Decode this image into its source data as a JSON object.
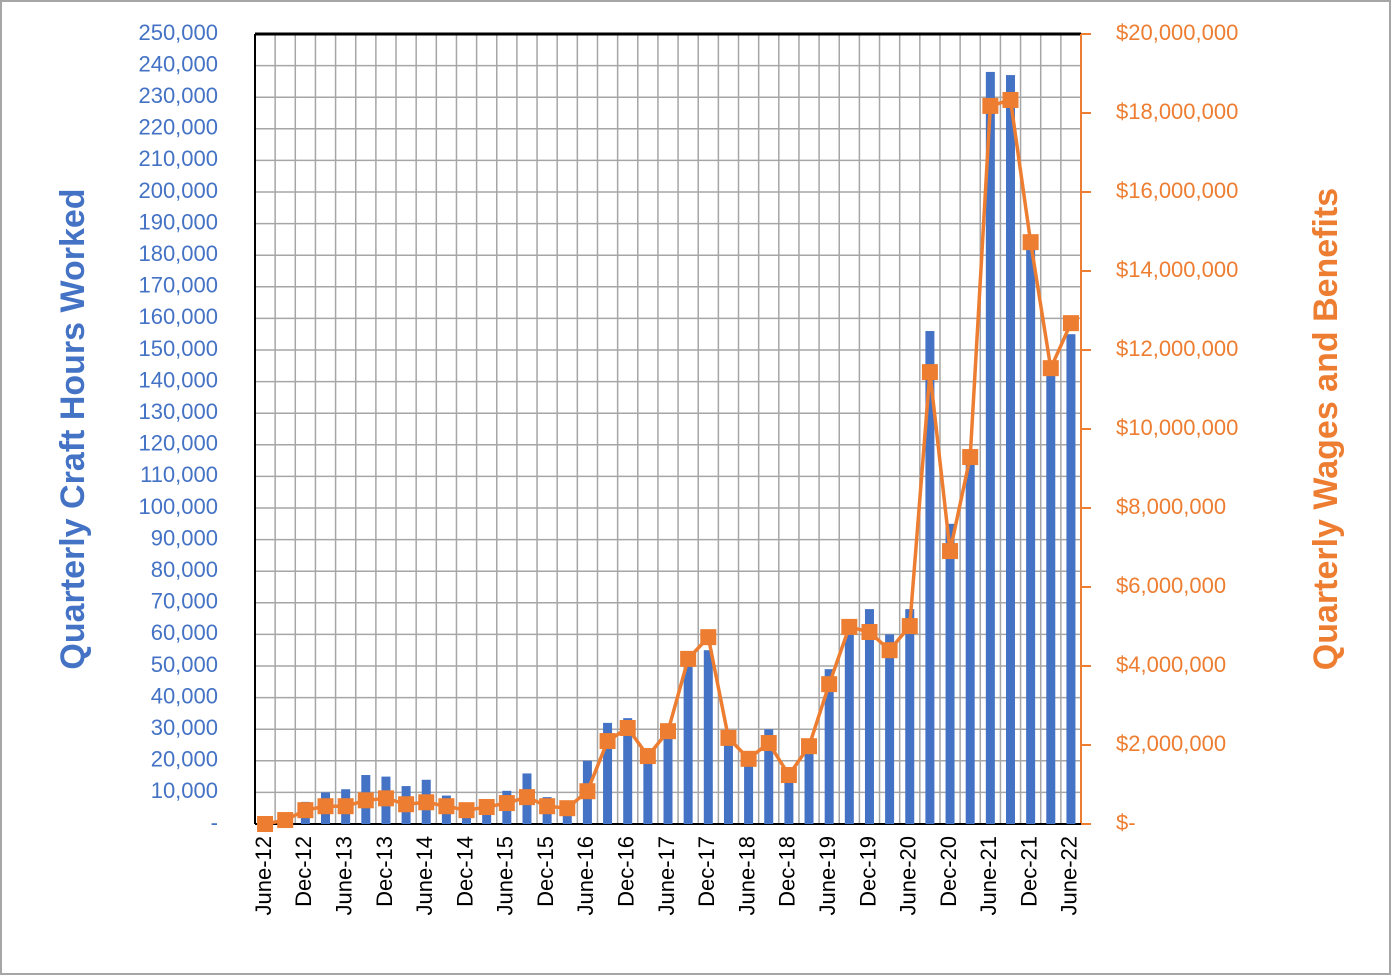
{
  "chart_data": {
    "type": "bar-line",
    "y_label": "Quarterly Craft Hours Worked",
    "y2_label": "Quarterly Wages and Benefits",
    "categories": [
      "June-12",
      null,
      "Dec-12",
      null,
      "June-13",
      null,
      "Dec-13",
      null,
      "June-14",
      null,
      "Dec-14",
      null,
      "June-15",
      null,
      "Dec-15",
      null,
      "June-16",
      null,
      "Dec-16",
      null,
      "June-17",
      null,
      "Dec-17",
      null,
      "June-18",
      null,
      "Dec-18",
      null,
      "June-19",
      null,
      "Dec-19",
      null,
      "June-20",
      null,
      "Dec-20",
      null,
      "June-21",
      null,
      "Dec-21",
      null,
      "June-22"
    ],
    "series": [
      {
        "type": "bar",
        "color": "#4472c4",
        "values": [
          1000,
          3000,
          7000,
          10000,
          11000,
          15500,
          15000,
          12000,
          14000,
          9000,
          5000,
          6000,
          10500,
          16000,
          8500,
          7000,
          20000,
          32000,
          33500,
          21000,
          30000,
          50000,
          55000,
          27000,
          20000,
          30000,
          14000,
          25000,
          49000,
          63000,
          68000,
          60000,
          68000,
          156000,
          95000,
          118000,
          238000,
          237000,
          185000,
          145000,
          155000
        ]
      },
      {
        "type": "line",
        "axis": "y2",
        "color": "#ed7d31",
        "values": [
          0,
          100000,
          350000,
          450000,
          450000,
          600000,
          650000,
          500000,
          550000,
          450000,
          350000,
          430000,
          530000,
          680000,
          450000,
          400000,
          830000,
          2100000,
          2430000,
          1720000,
          2350000,
          4180000,
          4730000,
          2180000,
          1650000,
          2050000,
          1240000,
          1970000,
          3540000,
          4990000,
          4860000,
          4400000,
          5010000,
          11440000,
          6910000,
          9290000,
          18180000,
          18330000,
          14730000,
          11540000,
          12680000
        ]
      }
    ],
    "ylim": [
      0,
      250000
    ],
    "yticks": [
      {
        "value": 0,
        "label": "-"
      },
      {
        "value": 10000,
        "label": "10,000"
      },
      {
        "value": 20000,
        "label": "20,000"
      },
      {
        "value": 30000,
        "label": "30,000"
      },
      {
        "value": 40000,
        "label": "40,000"
      },
      {
        "value": 50000,
        "label": "50,000"
      },
      {
        "value": 60000,
        "label": "60,000"
      },
      {
        "value": 70000,
        "label": "70,000"
      },
      {
        "value": 80000,
        "label": "80,000"
      },
      {
        "value": 90000,
        "label": "90,000"
      },
      {
        "value": 100000,
        "label": "100,000"
      },
      {
        "value": 110000,
        "label": "110,000"
      },
      {
        "value": 120000,
        "label": "120,000"
      },
      {
        "value": 130000,
        "label": "130,000"
      },
      {
        "value": 140000,
        "label": "140,000"
      },
      {
        "value": 150000,
        "label": "150,000"
      },
      {
        "value": 160000,
        "label": "160,000"
      },
      {
        "value": 170000,
        "label": "170,000"
      },
      {
        "value": 180000,
        "label": "180,000"
      },
      {
        "value": 190000,
        "label": "190,000"
      },
      {
        "value": 200000,
        "label": "200,000"
      },
      {
        "value": 210000,
        "label": "210,000"
      },
      {
        "value": 220000,
        "label": "220,000"
      },
      {
        "value": 230000,
        "label": "230,000"
      },
      {
        "value": 240000,
        "label": "240,000"
      },
      {
        "value": 250000,
        "label": "250,000"
      }
    ],
    "y2lim": [
      0,
      20000000
    ],
    "y2ticks": [
      {
        "value": 0,
        "label": "$-"
      },
      {
        "value": 2000000,
        "label": "$2,000,000"
      },
      {
        "value": 4000000,
        "label": "$4,000,000"
      },
      {
        "value": 6000000,
        "label": "$6,000,000"
      },
      {
        "value": 8000000,
        "label": "$8,000,000"
      },
      {
        "value": 10000000,
        "label": "$10,000,000"
      },
      {
        "value": 12000000,
        "label": "$12,000,000"
      },
      {
        "value": 14000000,
        "label": "$14,000,000"
      },
      {
        "value": 16000000,
        "label": "$16,000,000"
      },
      {
        "value": 18000000,
        "label": "$18,000,000"
      },
      {
        "value": 20000000,
        "label": "$20,000,000"
      }
    ],
    "grid": true
  }
}
